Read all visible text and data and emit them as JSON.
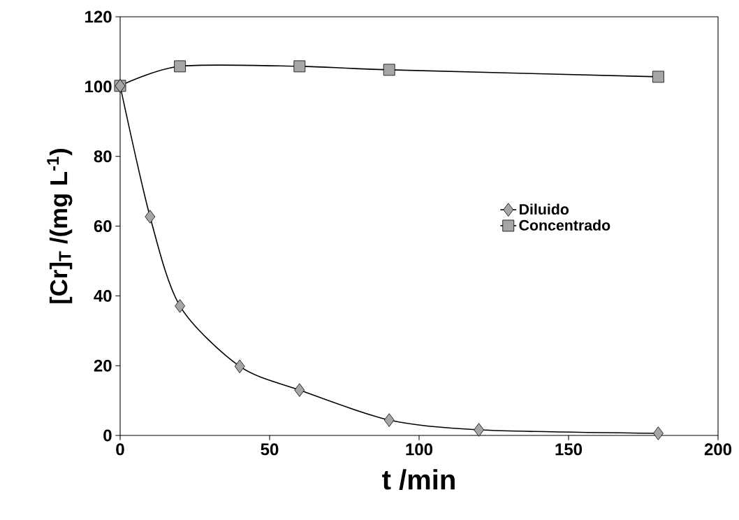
{
  "chart_data": {
    "type": "line",
    "xlabel": "t /min",
    "ylabel": "[Cr]$_{T}$ /(mg L$^{-1}$)",
    "series": [
      {
        "name": "Diluido",
        "color": "#a6a6a6",
        "marker": "diamond",
        "x": [
          0,
          10,
          20,
          40,
          60,
          90,
          120,
          180
        ],
        "values": [
          100.2,
          62.7,
          37.1,
          19.8,
          13.0,
          4.4,
          1.6,
          0.6
        ]
      },
      {
        "name": "Concentrado",
        "color": "#a6a6a6",
        "marker": "square",
        "x": [
          0,
          20,
          60,
          90,
          180
        ],
        "values": [
          100.2,
          105.8,
          105.8,
          104.8,
          102.8
        ]
      }
    ],
    "xlim": [
      0,
      200
    ],
    "ylim": [
      0,
      120
    ],
    "xticks": [
      0,
      50,
      100,
      150,
      200
    ],
    "yticks": [
      0,
      20,
      40,
      60,
      80,
      100,
      120
    ],
    "legend": "right"
  }
}
